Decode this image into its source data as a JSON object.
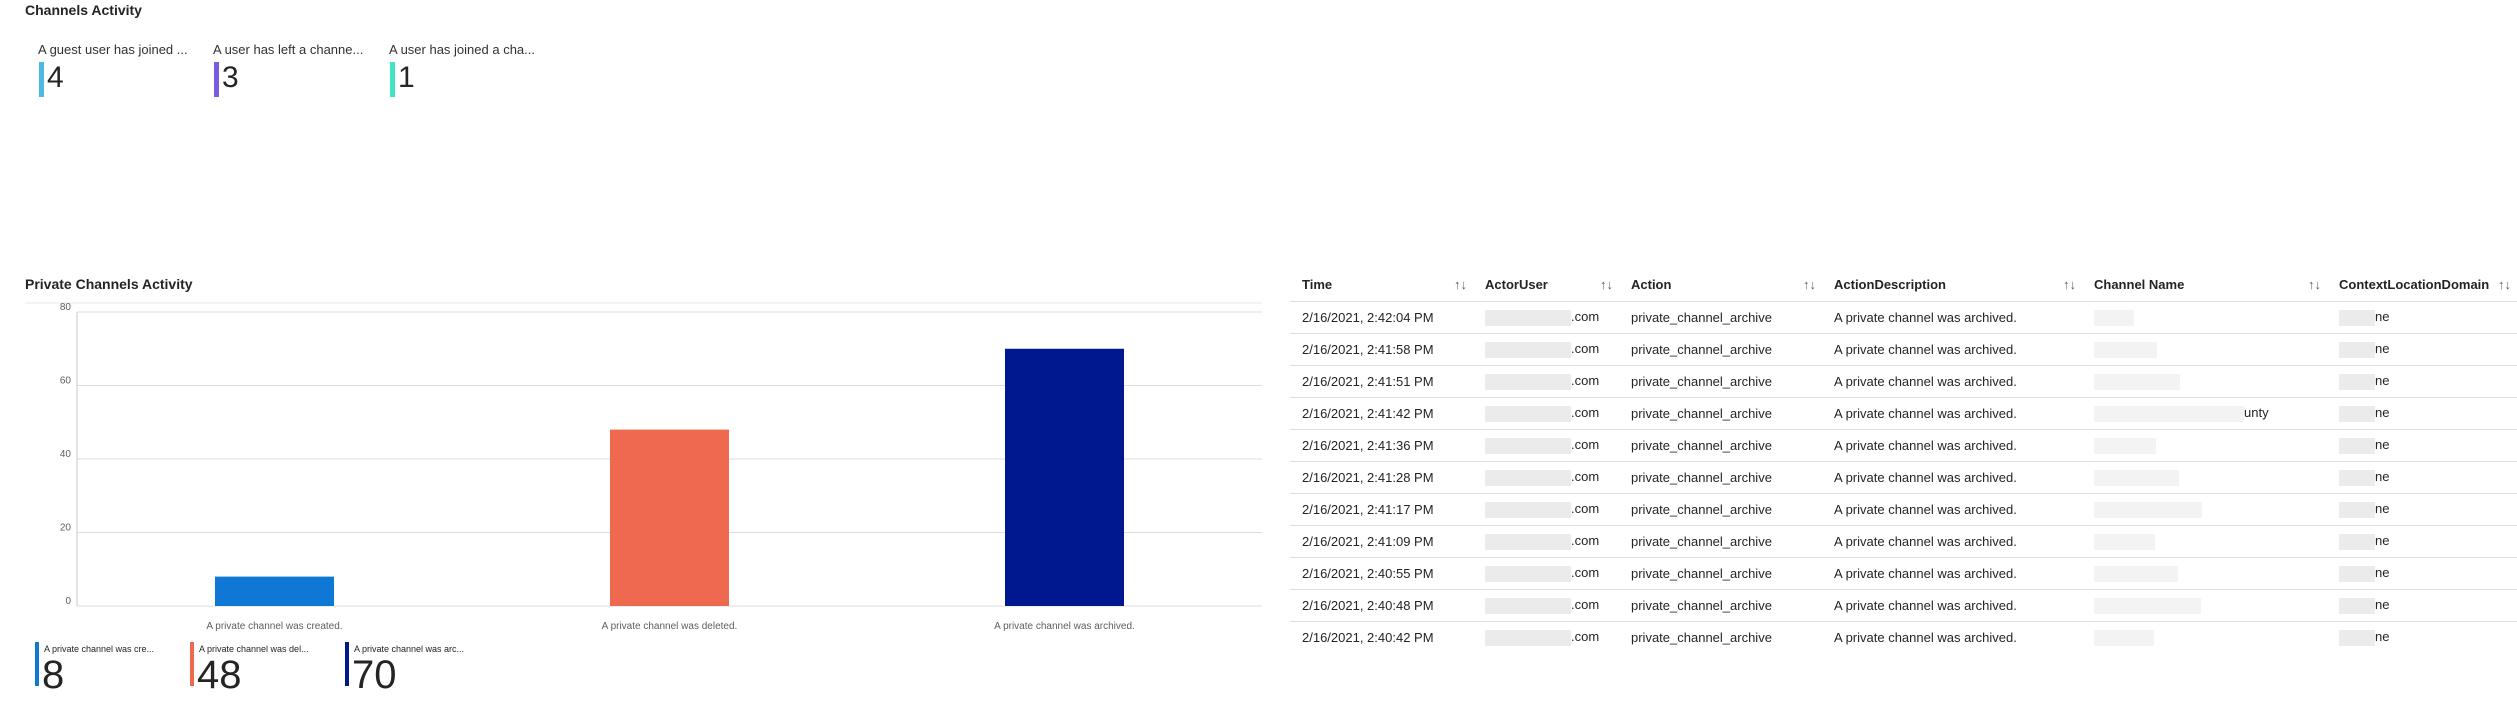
{
  "channels_activity": {
    "title": "Channels Activity",
    "kpis": [
      {
        "label": "A guest user has joined ...",
        "value": "4",
        "color": "#4fb8e0"
      },
      {
        "label": "A user has left a channe...",
        "value": "3",
        "color": "#7b5be0"
      },
      {
        "label": "A user has joined a cha...",
        "value": "1",
        "color": "#3ee6c4"
      }
    ]
  },
  "private_channels_activity": {
    "title": "Private Channels Activity",
    "legend": [
      {
        "label": "A private channel was cre...",
        "value": "8",
        "color": "#0f78d4"
      },
      {
        "label": "A private channel was del...",
        "value": "48",
        "color": "#ef6950"
      },
      {
        "label": "A private channel was arc...",
        "value": "70",
        "color": "#00188f"
      }
    ]
  },
  "chart_data": {
    "type": "bar",
    "categories": [
      "A private channel was created.",
      "A private channel was deleted.",
      "A private channel was archived."
    ],
    "values": [
      8,
      48,
      70
    ],
    "colors": [
      "#0f78d4",
      "#ef6950",
      "#00188f"
    ],
    "yticks": [
      0,
      20,
      40,
      60,
      80
    ],
    "ylim": [
      0,
      80
    ],
    "grid": true
  },
  "table": {
    "columns": [
      "Time",
      "ActorUser",
      "Action",
      "ActionDescription",
      "Channel Name",
      "ContextLocationDomain"
    ],
    "sort_icon": "↑↓",
    "rows": [
      {
        "time": "2/16/2021, 2:42:04 PM",
        "actor": ".com",
        "action": "private_channel_archive",
        "desc": "A private channel was archived.",
        "channel": "",
        "domain": "ne"
      },
      {
        "time": "2/16/2021, 2:41:58 PM",
        "actor": ".com",
        "action": "private_channel_archive",
        "desc": "A private channel was archived.",
        "channel": "",
        "domain": "ne"
      },
      {
        "time": "2/16/2021, 2:41:51 PM",
        "actor": ".com",
        "action": "private_channel_archive",
        "desc": "A private channel was archived.",
        "channel": "",
        "domain": "ne"
      },
      {
        "time": "2/16/2021, 2:41:42 PM",
        "actor": ".com",
        "action": "private_channel_archive",
        "desc": "A private channel was archived.",
        "channel": "unty",
        "domain": "ne"
      },
      {
        "time": "2/16/2021, 2:41:36 PM",
        "actor": ".com",
        "action": "private_channel_archive",
        "desc": "A private channel was archived.",
        "channel": "",
        "domain": "ne"
      },
      {
        "time": "2/16/2021, 2:41:28 PM",
        "actor": ".com",
        "action": "private_channel_archive",
        "desc": "A private channel was archived.",
        "channel": "",
        "domain": "ne"
      },
      {
        "time": "2/16/2021, 2:41:17 PM",
        "actor": ".com",
        "action": "private_channel_archive",
        "desc": "A private channel was archived.",
        "channel": "",
        "domain": "ne"
      },
      {
        "time": "2/16/2021, 2:41:09 PM",
        "actor": ".com",
        "action": "private_channel_archive",
        "desc": "A private channel was archived.",
        "channel": "",
        "domain": "ne"
      },
      {
        "time": "2/16/2021, 2:40:55 PM",
        "actor": ".com",
        "action": "private_channel_archive",
        "desc": "A private channel was archived.",
        "channel": "",
        "domain": "ne"
      },
      {
        "time": "2/16/2021, 2:40:48 PM",
        "actor": ".com",
        "action": "private_channel_archive",
        "desc": "A private channel was archived.",
        "channel": "",
        "domain": "ne"
      },
      {
        "time": "2/16/2021, 2:40:42 PM",
        "actor": ".com",
        "action": "private_channel_archive",
        "desc": "A private channel was archived.",
        "channel": "",
        "domain": "ne"
      }
    ]
  }
}
